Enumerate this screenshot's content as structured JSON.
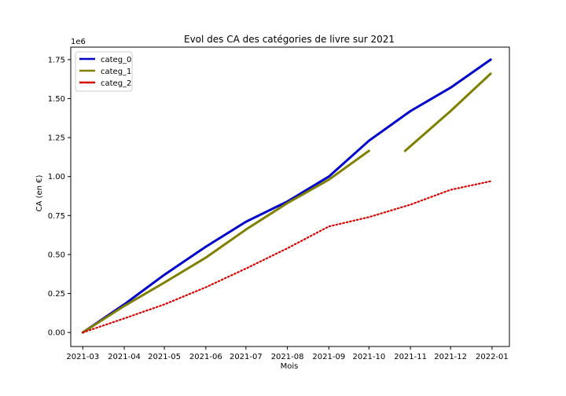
{
  "chart_data": {
    "type": "line",
    "title": "Evol des CA des catégories de livre sur 2021",
    "xlabel": "Mois",
    "ylabel": "CA (en €)",
    "y_offset_label": "1e6",
    "xlim": [
      "2021-02-20",
      "2022-01-14"
    ],
    "ylim": [
      -0.09,
      1.83
    ],
    "x_ticks": [
      "2021-03",
      "2021-04",
      "2021-05",
      "2021-06",
      "2021-07",
      "2021-08",
      "2021-09",
      "2021-10",
      "2021-11",
      "2021-12",
      "2022-01"
    ],
    "y_ticks": [
      "0.00",
      "0.25",
      "0.50",
      "0.75",
      "1.00",
      "1.25",
      "1.50",
      "1.75"
    ],
    "legend_position": "top-left",
    "grid": false,
    "series": [
      {
        "name": "categ_0",
        "color": "#0000cc",
        "style": "solid",
        "points": [
          [
            "2021-03-01",
            0.0
          ],
          [
            "2021-04-01",
            0.18
          ],
          [
            "2021-05-01",
            0.37
          ],
          [
            "2021-06-01",
            0.55
          ],
          [
            "2021-07-01",
            0.71
          ],
          [
            "2021-08-01",
            0.84
          ],
          [
            "2021-09-01",
            1.0
          ],
          [
            "2021-10-01",
            1.23
          ],
          [
            "2021-11-01",
            1.42
          ],
          [
            "2021-12-01",
            1.57
          ],
          [
            "2021-12-31",
            1.75
          ]
        ]
      },
      {
        "name": "categ_1",
        "color": "#808000",
        "style": "solid",
        "segments": [
          [
            [
              "2021-03-01",
              0.0
            ],
            [
              "2021-04-01",
              0.17
            ],
            [
              "2021-05-01",
              0.32
            ],
            [
              "2021-06-01",
              0.48
            ],
            [
              "2021-07-01",
              0.66
            ],
            [
              "2021-08-01",
              0.83
            ],
            [
              "2021-09-01",
              0.98
            ],
            [
              "2021-10-01",
              1.165
            ]
          ],
          [
            [
              "2021-10-28",
              1.165
            ],
            [
              "2021-12-01",
              1.42
            ],
            [
              "2021-12-31",
              1.66
            ]
          ]
        ]
      },
      {
        "name": "categ_2",
        "color": "#dd0000",
        "style": "dotted",
        "points": [
          [
            "2021-03-01",
            0.0
          ],
          [
            "2021-04-01",
            0.09
          ],
          [
            "2021-05-01",
            0.18
          ],
          [
            "2021-06-01",
            0.29
          ],
          [
            "2021-07-01",
            0.41
          ],
          [
            "2021-08-01",
            0.54
          ],
          [
            "2021-09-01",
            0.68
          ],
          [
            "2021-10-01",
            0.74
          ],
          [
            "2021-11-01",
            0.82
          ],
          [
            "2021-12-01",
            0.915
          ],
          [
            "2021-12-31",
            0.97
          ]
        ]
      }
    ]
  }
}
